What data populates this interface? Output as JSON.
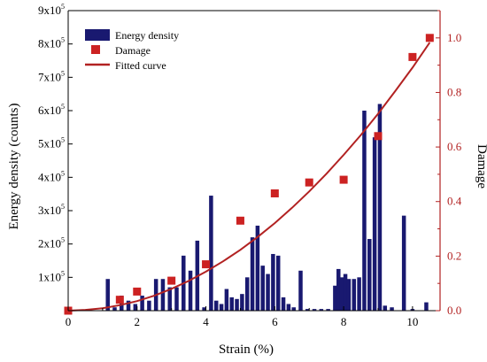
{
  "chart_data": {
    "type": "bar",
    "xlabel": "Strain (%)",
    "ylabel_left": "Energy density (counts)",
    "ylabel_right": "Damage",
    "xlim": [
      0,
      10.8
    ],
    "ylim_left": [
      0,
      900000
    ],
    "ylim_right": [
      0,
      1.1
    ],
    "x_ticks": [
      0,
      2,
      4,
      6,
      8,
      10
    ],
    "y_left_ticks": [
      {
        "base": "1x10",
        "exp": "5",
        "value": 100000
      },
      {
        "base": "2x10",
        "exp": "5",
        "value": 200000
      },
      {
        "base": "3x10",
        "exp": "5",
        "value": 300000
      },
      {
        "base": "4x10",
        "exp": "5",
        "value": 400000
      },
      {
        "base": "5x10",
        "exp": "5",
        "value": 500000
      },
      {
        "base": "6x10",
        "exp": "5",
        "value": 600000
      },
      {
        "base": "7x10",
        "exp": "5",
        "value": 700000
      },
      {
        "base": "8x10",
        "exp": "5",
        "value": 800000
      },
      {
        "base": "9x10",
        "exp": "5",
        "value": 900000
      }
    ],
    "y_right_ticks": [
      "0.0",
      "0.2",
      "0.4",
      "0.6",
      "0.8",
      "1.0"
    ],
    "legend": [
      "Energy density",
      "Damage",
      "Fitted curve"
    ],
    "colors": {
      "bars": "#191970",
      "damage": "#cc2222",
      "curve": "#b22222",
      "right_axis": "#b22222"
    },
    "series": [
      {
        "name": "Energy density",
        "kind": "bar",
        "x": [
          1.15,
          1.35,
          1.55,
          1.75,
          1.95,
          2.15,
          2.35,
          2.55,
          2.75,
          2.95,
          3.15,
          3.35,
          3.55,
          3.75,
          3.95,
          4.15,
          4.3,
          4.45,
          4.6,
          4.75,
          4.9,
          5.05,
          5.2,
          5.35,
          5.5,
          5.65,
          5.8,
          5.95,
          6.1,
          6.25,
          6.4,
          6.55,
          6.75,
          6.95,
          7.15,
          7.35,
          7.55,
          7.75,
          7.85,
          7.95,
          8.05,
          8.15,
          8.3,
          8.45,
          8.6,
          8.75,
          8.9,
          9.05,
          9.2,
          9.4,
          9.75,
          10.0,
          10.4
        ],
        "values": [
          95000,
          10000,
          45000,
          30000,
          20000,
          45000,
          30000,
          95000,
          95000,
          70000,
          70000,
          165000,
          120000,
          210000,
          10000,
          345000,
          30000,
          20000,
          65000,
          40000,
          35000,
          50000,
          100000,
          220000,
          255000,
          135000,
          110000,
          170000,
          165000,
          40000,
          20000,
          10000,
          120000,
          5000,
          5000,
          5000,
          5000,
          75000,
          125000,
          100000,
          110000,
          95000,
          95000,
          100000,
          600000,
          215000,
          520000,
          620000,
          15000,
          10000,
          285000,
          5000,
          25000
        ]
      },
      {
        "name": "Damage",
        "kind": "scatter",
        "x": [
          0,
          1.5,
          2,
          3,
          4,
          5,
          6,
          7,
          8,
          9,
          10,
          10.5
        ],
        "values": [
          0.0,
          0.04,
          0.07,
          0.11,
          0.17,
          0.33,
          0.43,
          0.47,
          0.48,
          0.64,
          0.93,
          1.0
        ]
      },
      {
        "name": "Fitted curve",
        "kind": "line",
        "x": [
          0,
          0.5,
          1,
          1.5,
          2,
          2.5,
          3,
          3.5,
          4,
          4.5,
          5,
          5.5,
          6,
          6.5,
          7,
          7.5,
          8,
          8.5,
          9,
          9.5,
          10,
          10.5
        ],
        "values": [
          0.0,
          0.003,
          0.009,
          0.02,
          0.035,
          0.055,
          0.08,
          0.109,
          0.143,
          0.181,
          0.223,
          0.27,
          0.321,
          0.377,
          0.437,
          0.502,
          0.571,
          0.644,
          0.722,
          0.805,
          0.891,
          0.983
        ]
      }
    ]
  }
}
